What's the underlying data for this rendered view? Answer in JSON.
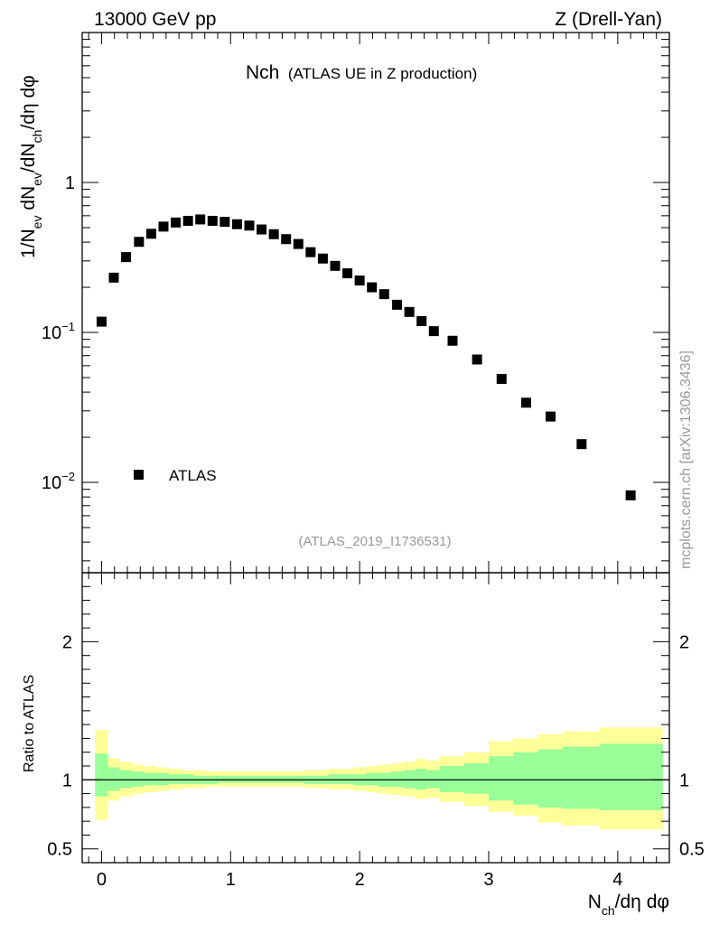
{
  "header": {
    "left": "13000 GeV pp",
    "right": "Z (Drell-Yan)"
  },
  "side_label": "mcplots.cern.ch [arXiv:1306.3436]",
  "chart_data": [
    {
      "type": "scatter",
      "title": "Nch",
      "subtitle": "(ATLAS UE in Z production)",
      "analysis_id": "(ATLAS_2019_I1736531)",
      "ylabel": "1/N_ev dN_ev/dN_ch/dη dφ",
      "y_scale": "log",
      "ylim": [
        0.0025,
        10
      ],
      "xlim": [
        -0.15,
        4.4
      ],
      "y_ticks": [
        {
          "value": 1,
          "label": "1"
        },
        {
          "value": 0.1,
          "label": "10",
          "exp": "−1"
        },
        {
          "value": 0.01,
          "label": "10",
          "exp": "−2"
        }
      ],
      "legend": {
        "placement": "bottom-left",
        "entries": [
          "ATLAS"
        ]
      },
      "series": [
        {
          "name": "ATLAS",
          "marker": "square",
          "color": "#000000",
          "x": [
            0.0,
            0.095,
            0.19,
            0.29,
            0.385,
            0.48,
            0.575,
            0.67,
            0.765,
            0.86,
            0.955,
            1.05,
            1.145,
            1.24,
            1.335,
            1.43,
            1.525,
            1.62,
            1.715,
            1.81,
            1.905,
            2.0,
            2.095,
            2.19,
            2.29,
            2.385,
            2.48,
            2.575,
            2.72,
            2.91,
            3.1,
            3.29,
            3.48,
            3.72,
            4.1
          ],
          "values": [
            0.118,
            0.232,
            0.318,
            0.402,
            0.455,
            0.508,
            0.541,
            0.555,
            0.567,
            0.555,
            0.547,
            0.527,
            0.516,
            0.486,
            0.452,
            0.419,
            0.389,
            0.343,
            0.311,
            0.278,
            0.248,
            0.222,
            0.2,
            0.18,
            0.153,
            0.137,
            0.119,
            0.102,
            0.088,
            0.066,
            0.049,
            0.034,
            0.0275,
            0.018,
            0.0082
          ]
        }
      ]
    },
    {
      "type": "area",
      "ylabel": "Ratio to ATLAS",
      "xlabel": "N_ch/dη dφ",
      "ylim": [
        0.4,
        2.5
      ],
      "xlim": [
        -0.15,
        4.4
      ],
      "x_ticks": [
        0,
        1,
        2,
        3,
        4
      ],
      "y_ticks": [
        {
          "value": 0.5,
          "label": "0.5"
        },
        {
          "value": 1,
          "label": "1"
        },
        {
          "value": 2,
          "label": "2"
        }
      ],
      "reference_line": 1,
      "band_colors": {
        "stat": "#99ff99",
        "total": "#ffff99"
      },
      "bin_edges": [
        -0.05,
        0.05,
        0.14,
        0.24,
        0.33,
        0.43,
        0.52,
        0.62,
        0.71,
        0.81,
        0.9,
        1.0,
        1.1,
        1.19,
        1.29,
        1.38,
        1.48,
        1.57,
        1.67,
        1.76,
        1.86,
        1.95,
        2.05,
        2.14,
        2.24,
        2.33,
        2.43,
        2.52,
        2.62,
        2.81,
        3.0,
        3.19,
        3.38,
        3.57,
        3.86,
        4.35
      ],
      "total_up": [
        1.36,
        1.16,
        1.13,
        1.11,
        1.1,
        1.09,
        1.08,
        1.07,
        1.07,
        1.06,
        1.06,
        1.06,
        1.06,
        1.06,
        1.06,
        1.06,
        1.06,
        1.07,
        1.07,
        1.08,
        1.08,
        1.09,
        1.1,
        1.11,
        1.12,
        1.13,
        1.15,
        1.14,
        1.17,
        1.2,
        1.28,
        1.3,
        1.33,
        1.35,
        1.38
      ],
      "total_down": [
        0.71,
        0.85,
        0.88,
        0.9,
        0.91,
        0.92,
        0.93,
        0.94,
        0.94,
        0.95,
        0.95,
        0.95,
        0.95,
        0.95,
        0.95,
        0.95,
        0.95,
        0.94,
        0.94,
        0.93,
        0.93,
        0.92,
        0.91,
        0.9,
        0.89,
        0.88,
        0.86,
        0.87,
        0.84,
        0.81,
        0.77,
        0.74,
        0.69,
        0.67,
        0.64
      ],
      "stat_up": [
        1.19,
        1.09,
        1.07,
        1.06,
        1.05,
        1.05,
        1.04,
        1.04,
        1.03,
        1.03,
        1.03,
        1.03,
        1.03,
        1.03,
        1.03,
        1.03,
        1.03,
        1.03,
        1.03,
        1.04,
        1.04,
        1.04,
        1.05,
        1.05,
        1.06,
        1.07,
        1.08,
        1.07,
        1.1,
        1.12,
        1.17,
        1.2,
        1.22,
        1.24,
        1.26
      ],
      "stat_down": [
        0.88,
        0.92,
        0.94,
        0.95,
        0.96,
        0.96,
        0.97,
        0.97,
        0.97,
        0.97,
        0.98,
        0.98,
        0.98,
        0.98,
        0.98,
        0.98,
        0.98,
        0.97,
        0.97,
        0.97,
        0.97,
        0.96,
        0.96,
        0.95,
        0.95,
        0.94,
        0.93,
        0.94,
        0.91,
        0.9,
        0.85,
        0.82,
        0.8,
        0.79,
        0.78
      ]
    }
  ]
}
